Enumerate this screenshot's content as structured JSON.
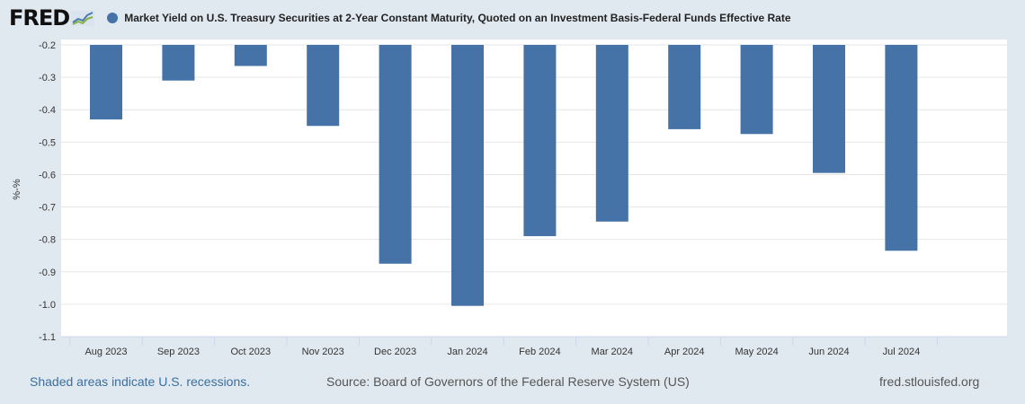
{
  "header": {
    "logo_text": "FRED",
    "series_title": "Market Yield on U.S. Treasury Securities at 2-Year Constant Maturity, Quoted on an Investment Basis-Federal Funds Effective Rate",
    "series_color": "#4572a7"
  },
  "footer": {
    "recession_note": "Shaded areas indicate U.S. recessions.",
    "source": "Source: Board of Governors of the Federal Reserve System (US)",
    "site": "fred.stlouisfed.org"
  },
  "chart_data": {
    "type": "bar",
    "ylabel": "%-%",
    "ylim": [
      -1.1,
      -0.2
    ],
    "yticks": [
      "-0.2",
      "-0.3",
      "-0.4",
      "-0.5",
      "-0.6",
      "-0.7",
      "-0.8",
      "-0.9",
      "-1.0",
      "-1.1"
    ],
    "grid": true,
    "categories": [
      "Aug 2023",
      "Sep 2023",
      "Oct 2023",
      "Nov 2023",
      "Dec 2023",
      "Jan 2024",
      "Feb 2024",
      "Mar 2024",
      "Apr 2024",
      "May 2024",
      "Jun 2024",
      "Jul 2024"
    ],
    "values": [
      -0.43,
      -0.31,
      -0.265,
      -0.45,
      -0.875,
      -1.005,
      -0.79,
      -0.745,
      -0.46,
      -0.475,
      -0.595,
      -0.835
    ],
    "bar_color": "#4572a7"
  }
}
